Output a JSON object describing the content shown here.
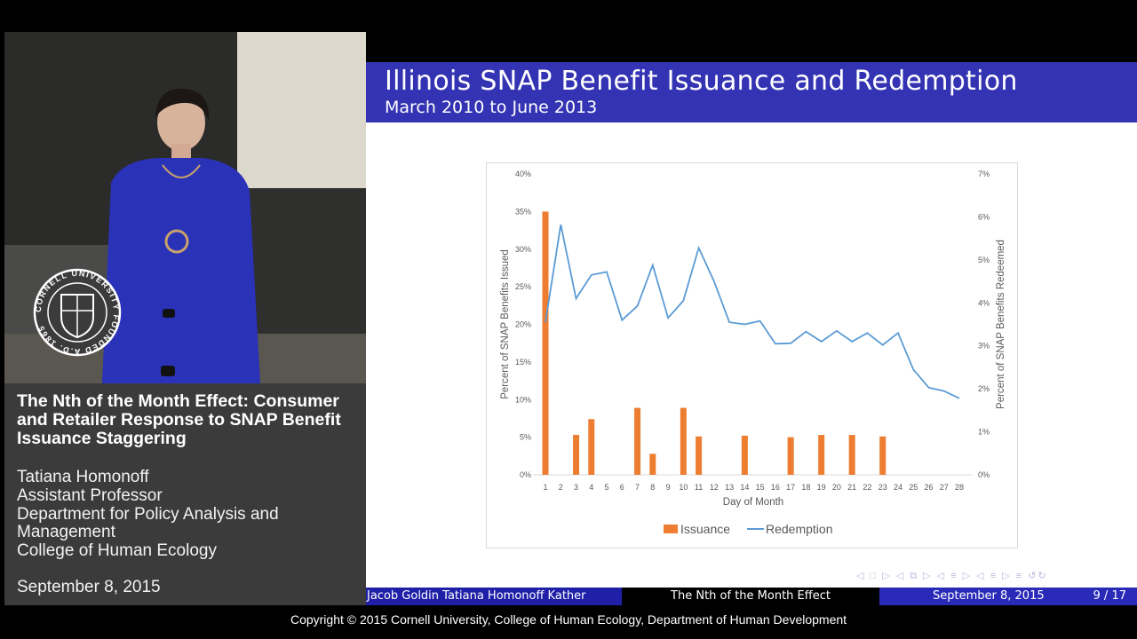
{
  "left_panel": {
    "talk_title": "The Nth of the Month Effect: Consumer and Retailer Response to SNAP Benefit Issuance Staggering",
    "speaker_name": "Tatiana Homonoff",
    "speaker_role": "Assistant Professor",
    "department_line1": "Department for Policy Analysis and",
    "department_line2": "Management",
    "college": "College of Human Ecology",
    "date": "September 8, 2015",
    "seal_text": "CORNELL UNIVERSITY FOUNDED A.D. 1865"
  },
  "slide": {
    "title": "Illinois SNAP Benefit Issuance and Redemption",
    "subtitle": "March 2010 to June 2013",
    "header_color": "#3333b3"
  },
  "footer": {
    "authors": "Jacob Goldin  Tatiana Homonoff  Kather",
    "short_title": "The Nth of the Month Effect",
    "date": "September 8, 2015",
    "page": "9 / 17"
  },
  "copyright": "Copyright © 2015 Cornell University, College of Human Ecology, Department of Human Development",
  "chart_data": {
    "type": "bar",
    "categories": [
      "1",
      "2",
      "3",
      "4",
      "5",
      "6",
      "7",
      "8",
      "9",
      "10",
      "11",
      "12",
      "13",
      "14",
      "15",
      "16",
      "17",
      "18",
      "19",
      "20",
      "21",
      "22",
      "23",
      "24",
      "25",
      "26",
      "27",
      "28"
    ],
    "xlabel": "Day of Month",
    "ylabel_left": "Percent of SNAP Benefits Issued",
    "ylabel_right": "Percent of SNAP Benefits Redeemed",
    "ylim_left": [
      0,
      40
    ],
    "ylim_right": [
      0,
      7
    ],
    "left_ticks": [
      "0%",
      "5%",
      "10%",
      "15%",
      "20%",
      "25%",
      "30%",
      "35%",
      "40%"
    ],
    "right_ticks": [
      "0%",
      "1%",
      "2%",
      "3%",
      "4%",
      "5%",
      "6%",
      "7%"
    ],
    "grid": false,
    "legend_position": "bottom",
    "series": [
      {
        "name": "Issuance",
        "type": "bar",
        "axis": "left",
        "color": "#ed7d31",
        "values": [
          35.0,
          0,
          5.3,
          7.4,
          0,
          0,
          8.9,
          2.8,
          0,
          8.9,
          5.1,
          0,
          0,
          5.2,
          0,
          0,
          5.0,
          0,
          5.3,
          0,
          5.3,
          0,
          5.1,
          0,
          0,
          0,
          0,
          0
        ]
      },
      {
        "name": "Redemption",
        "type": "line",
        "axis": "right",
        "color": "#5b9bd5",
        "values": [
          3.55,
          5.82,
          4.1,
          4.65,
          4.72,
          3.6,
          3.93,
          4.88,
          3.65,
          4.05,
          5.28,
          4.5,
          3.55,
          3.5,
          3.58,
          3.05,
          3.06,
          3.33,
          3.1,
          3.35,
          3.1,
          3.3,
          3.02,
          3.3,
          2.45,
          2.03,
          1.95,
          1.78
        ]
      }
    ]
  }
}
